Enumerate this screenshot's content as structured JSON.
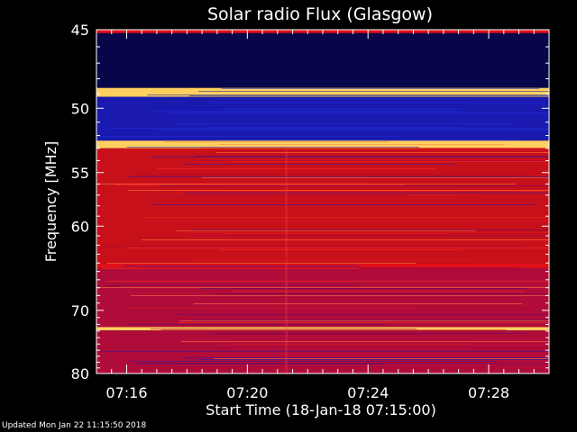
{
  "chart_data": {
    "type": "heatmap",
    "title": "Solar radio Flux (Glasgow)",
    "ylabel": "Frequency [MHz]",
    "xlabel": "Start Time (18-Jan-18 07:15:00)",
    "x_ticks": [
      "07:16",
      "07:20",
      "07:24",
      "07:28"
    ],
    "x_tick_minutes": [
      1,
      5,
      9,
      13
    ],
    "xlim_minutes": [
      0,
      15
    ],
    "y_ticks": [
      45,
      50,
      55,
      60,
      70,
      80
    ],
    "ylim": [
      45,
      80
    ],
    "y_scale": "reciprocal",
    "bands": [
      {
        "from": 45,
        "to": 45.2,
        "intensity": "high"
      },
      {
        "from": 45.2,
        "to": 48.6,
        "intensity": "very-low"
      },
      {
        "from": 48.6,
        "to": 49.2,
        "intensity": "very-high"
      },
      {
        "from": 49.2,
        "to": 52.4,
        "intensity": "low"
      },
      {
        "from": 52.4,
        "to": 53.0,
        "intensity": "very-high"
      },
      {
        "from": 53.0,
        "to": 64.0,
        "intensity": "medium-high"
      },
      {
        "from": 64.0,
        "to": 64.6,
        "intensity": "high"
      },
      {
        "from": 64.6,
        "to": 72.4,
        "intensity": "medium"
      },
      {
        "from": 72.4,
        "to": 72.9,
        "intensity": "very-high"
      },
      {
        "from": 72.9,
        "to": 80,
        "intensity": "medium"
      }
    ]
  },
  "footer": {
    "updated": "Updated Mon Jan 22 11:15:50 2018"
  }
}
